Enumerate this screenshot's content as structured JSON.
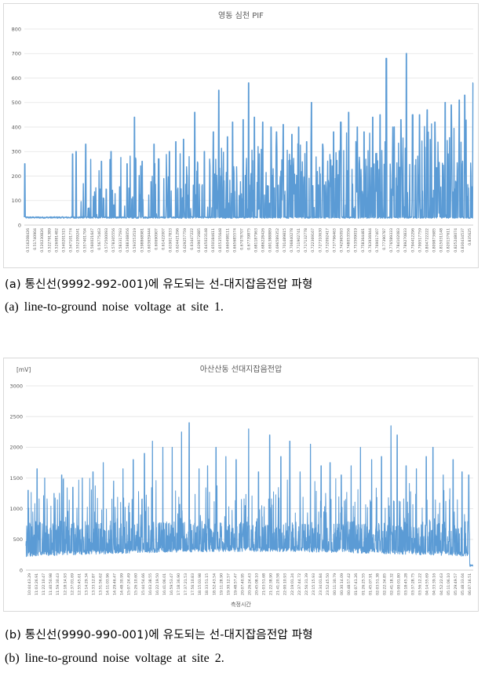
{
  "captions": {
    "a_ko": "(a) 통신선(9992-992-001)에 유도되는 선-대지잡음전압 파형",
    "a_en": "(a) line-to-ground noise voltage at site 1.",
    "b_ko": "(b) 통신선(9990-990-001)에 유도되는 선-대지잡음전압 파형",
    "b_en": "(b) line-to-ground noise voltage at site 2."
  },
  "chart_data": [
    {
      "type": "line",
      "title": "영동 심천 PIF",
      "ylim": [
        0,
        800
      ],
      "yticks": [
        0,
        100,
        200,
        300,
        400,
        500,
        600,
        700,
        800
      ],
      "grid": true,
      "legend": "none",
      "color": "#5b9bd5",
      "xticks": [
        "0.516208426",
        "0.51740904",
        "0.520230826",
        "0.522791389",
        "0.526081482",
        "0.540201515",
        "0.547101774",
        "0.552309241",
        "0.557401704",
        "0.560021647",
        "0.56775463",
        "0.572500093",
        "0.578305556",
        "0.583317593",
        "0.588368056",
        "0.593553519",
        "0.598868981",
        "0.603659444",
        "0.60690907",
        "0.61422007",
        "0.619017833",
        "0.624421296",
        "0.629257759",
        "0.63447222",
        "0.639072685",
        "0.645023148",
        "0.650184611",
        "0.655355648",
        "0.660498111",
        "0.665685574",
        "0.67078707",
        "0.67739875",
        "0.681187963",
        "0.686228426",
        "0.691388889",
        "0.696589352",
        "0.701489815",
        "0.706840278",
        "0.711902741",
        "0.717132778",
        "0.722369167",
        "0.727310630",
        "0.732092417",
        "0.737796463",
        "0.742965093",
        "0.748053556",
        "0.753509019",
        "0.758364481",
        "0.763936944",
        "0.769017407",
        "0.77390787",
        "0.776589333",
        "0.784102083",
        "0.789270833",
        "0.794412296",
        "0.799517759",
        "0.804722222",
        "0.809873685",
        "0.815031148",
        "0.820137611",
        "0.825248074",
        "0.830434537",
        "0.835625"
      ],
      "peaks": [
        {
          "x": 0.5166,
          "y": 250
        },
        {
          "x": 0.5506,
          "y": 290
        },
        {
          "x": 0.553,
          "y": 300
        },
        {
          "x": 0.56,
          "y": 330
        },
        {
          "x": 0.5711,
          "y": 260
        },
        {
          "x": 0.578,
          "y": 300
        },
        {
          "x": 0.5894,
          "y": 250
        },
        {
          "x": 0.5945,
          "y": 440
        },
        {
          "x": 0.6001,
          "y": 260
        },
        {
          "x": 0.6086,
          "y": 330
        },
        {
          "x": 0.6118,
          "y": 270
        },
        {
          "x": 0.6194,
          "y": 300
        },
        {
          "x": 0.624,
          "y": 340
        },
        {
          "x": 0.6294,
          "y": 350
        },
        {
          "x": 0.6375,
          "y": 460
        },
        {
          "x": 0.6444,
          "y": 300
        },
        {
          "x": 0.6508,
          "y": 380
        },
        {
          "x": 0.6546,
          "y": 550
        },
        {
          "x": 0.6608,
          "y": 360
        },
        {
          "x": 0.6645,
          "y": 420
        },
        {
          "x": 0.6719,
          "y": 430
        },
        {
          "x": 0.6757,
          "y": 580
        },
        {
          "x": 0.68,
          "y": 440
        },
        {
          "x": 0.6859,
          "y": 420
        },
        {
          "x": 0.6918,
          "y": 400
        },
        {
          "x": 0.6956,
          "y": 380
        },
        {
          "x": 0.7005,
          "y": 410
        },
        {
          "x": 0.7065,
          "y": 370
        },
        {
          "x": 0.7115,
          "y": 400
        },
        {
          "x": 0.7171,
          "y": 340
        },
        {
          "x": 0.7205,
          "y": 500
        },
        {
          "x": 0.7284,
          "y": 330
        },
        {
          "x": 0.7363,
          "y": 380
        },
        {
          "x": 0.7414,
          "y": 420
        },
        {
          "x": 0.747,
          "y": 460
        },
        {
          "x": 0.7532,
          "y": 400
        },
        {
          "x": 0.758,
          "y": 380
        },
        {
          "x": 0.7642,
          "y": 440
        },
        {
          "x": 0.7693,
          "y": 450
        },
        {
          "x": 0.7738,
          "y": 680
        },
        {
          "x": 0.7785,
          "y": 400
        },
        {
          "x": 0.7842,
          "y": 430
        },
        {
          "x": 0.788,
          "y": 700
        },
        {
          "x": 0.7925,
          "y": 450
        },
        {
          "x": 0.7975,
          "y": 450
        },
        {
          "x": 0.8029,
          "y": 470
        },
        {
          "x": 0.8084,
          "y": 420
        },
        {
          "x": 0.8157,
          "y": 500
        },
        {
          "x": 0.82,
          "y": 490
        },
        {
          "x": 0.8258,
          "y": 510
        },
        {
          "x": 0.8296,
          "y": 530
        },
        {
          "x": 0.8356,
          "y": 580
        }
      ]
    },
    {
      "type": "line",
      "title": "아산산동 선대지잡음전압",
      "unit_label": "[mV]",
      "xlabel": "측정시간",
      "ylim": [
        0,
        3000
      ],
      "yticks": [
        0,
        500,
        1000,
        1500,
        2000,
        2500,
        3000
      ],
      "grid": true,
      "legend": "none",
      "color": "#5b9bd5",
      "xticks": [
        "10:44:43.29",
        "11:03:26.91",
        "11:22:10.47",
        "11:40:50.98",
        "11:59:30.43",
        "12:18:14.93",
        "12:37:01.69",
        "12:55:45.61",
        "13:14:29.34",
        "13:33:12.87",
        "13:51:56.62",
        "14:11:03.96",
        "14:29:46.47",
        "14:48:30.99",
        "15:07:24.49",
        "15:26:10.60",
        "15:44:54.66",
        "16:03:38.55",
        "16:22:19.50",
        "16:41:06.01",
        "16:59:53.47",
        "17:18:36.90",
        "17:37:21.53",
        "17:56:10.83",
        "18:15:03.98",
        "18:33:51.15",
        "18:52:43.54",
        "19:11:28.90",
        "19:30:12.57",
        "19:48:57.47",
        "20:07:40.95",
        "20:26:24.43",
        "20:45:08.10",
        "21:03:51.68",
        "21:22:38.90",
        "21:41:20.58",
        "22:00:10.93",
        "22:19:01.24",
        "22:37:44.72",
        "22:56:31.39",
        "23:15:15.93",
        "23:34:01.84",
        "23:52:45.50",
        "00:11:30.79",
        "00:30:14.09",
        "00:48:57.42",
        "01:07:41.26",
        "01:26:25.55",
        "01:45:07.91",
        "02:03:51.38",
        "02:22:34.85",
        "02:41:18.32",
        "03:00:01.80",
        "03:18:45.28",
        "03:37:28.75",
        "03:56:12.22",
        "04:14:55.69",
        "04:33:39.16",
        "04:52:22.63",
        "05:11:06.10",
        "05:29:49.57",
        "05:48:33.04",
        "06:07:16.51"
      ],
      "peaks": [
        {
          "x": 0.5,
          "y": 1300
        },
        {
          "x": 2.5,
          "y": 1650
        },
        {
          "x": 4.2,
          "y": 1500
        },
        {
          "x": 6.3,
          "y": 1250
        },
        {
          "x": 8.0,
          "y": 1550
        },
        {
          "x": 10.5,
          "y": 1350
        },
        {
          "x": 12.6,
          "y": 1500
        },
        {
          "x": 15.0,
          "y": 1600
        },
        {
          "x": 17.3,
          "y": 1750
        },
        {
          "x": 19.6,
          "y": 1450
        },
        {
          "x": 21.7,
          "y": 1650
        },
        {
          "x": 24.0,
          "y": 1800
        },
        {
          "x": 26.5,
          "y": 1900
        },
        {
          "x": 28.3,
          "y": 2100
        },
        {
          "x": 30.6,
          "y": 2000
        },
        {
          "x": 32.7,
          "y": 2000
        },
        {
          "x": 34.8,
          "y": 2250
        },
        {
          "x": 36.5,
          "y": 2400
        },
        {
          "x": 38.7,
          "y": 1650
        },
        {
          "x": 40.6,
          "y": 1700
        },
        {
          "x": 42.5,
          "y": 2000
        },
        {
          "x": 44.7,
          "y": 1850
        },
        {
          "x": 47.0,
          "y": 1800
        },
        {
          "x": 49.8,
          "y": 2300
        },
        {
          "x": 52.0,
          "y": 1600
        },
        {
          "x": 54.5,
          "y": 2200
        },
        {
          "x": 57.0,
          "y": 1850
        },
        {
          "x": 59.0,
          "y": 2100
        },
        {
          "x": 61.3,
          "y": 1600
        },
        {
          "x": 63.6,
          "y": 2050
        },
        {
          "x": 66.0,
          "y": 1700
        },
        {
          "x": 68.0,
          "y": 1750
        },
        {
          "x": 70.5,
          "y": 1550
        },
        {
          "x": 72.7,
          "y": 1700
        },
        {
          "x": 74.8,
          "y": 2000
        },
        {
          "x": 77.3,
          "y": 1800
        },
        {
          "x": 79.5,
          "y": 1850
        },
        {
          "x": 81.6,
          "y": 2350
        },
        {
          "x": 83.0,
          "y": 2200
        },
        {
          "x": 85.0,
          "y": 1700
        },
        {
          "x": 87.3,
          "y": 1650
        },
        {
          "x": 89.5,
          "y": 1850
        },
        {
          "x": 91.0,
          "y": 2000
        },
        {
          "x": 93.3,
          "y": 1550
        },
        {
          "x": 95.5,
          "y": 1800
        },
        {
          "x": 97.5,
          "y": 1600
        },
        {
          "x": 99.0,
          "y": 1550
        }
      ],
      "tail_value": 60
    }
  ]
}
